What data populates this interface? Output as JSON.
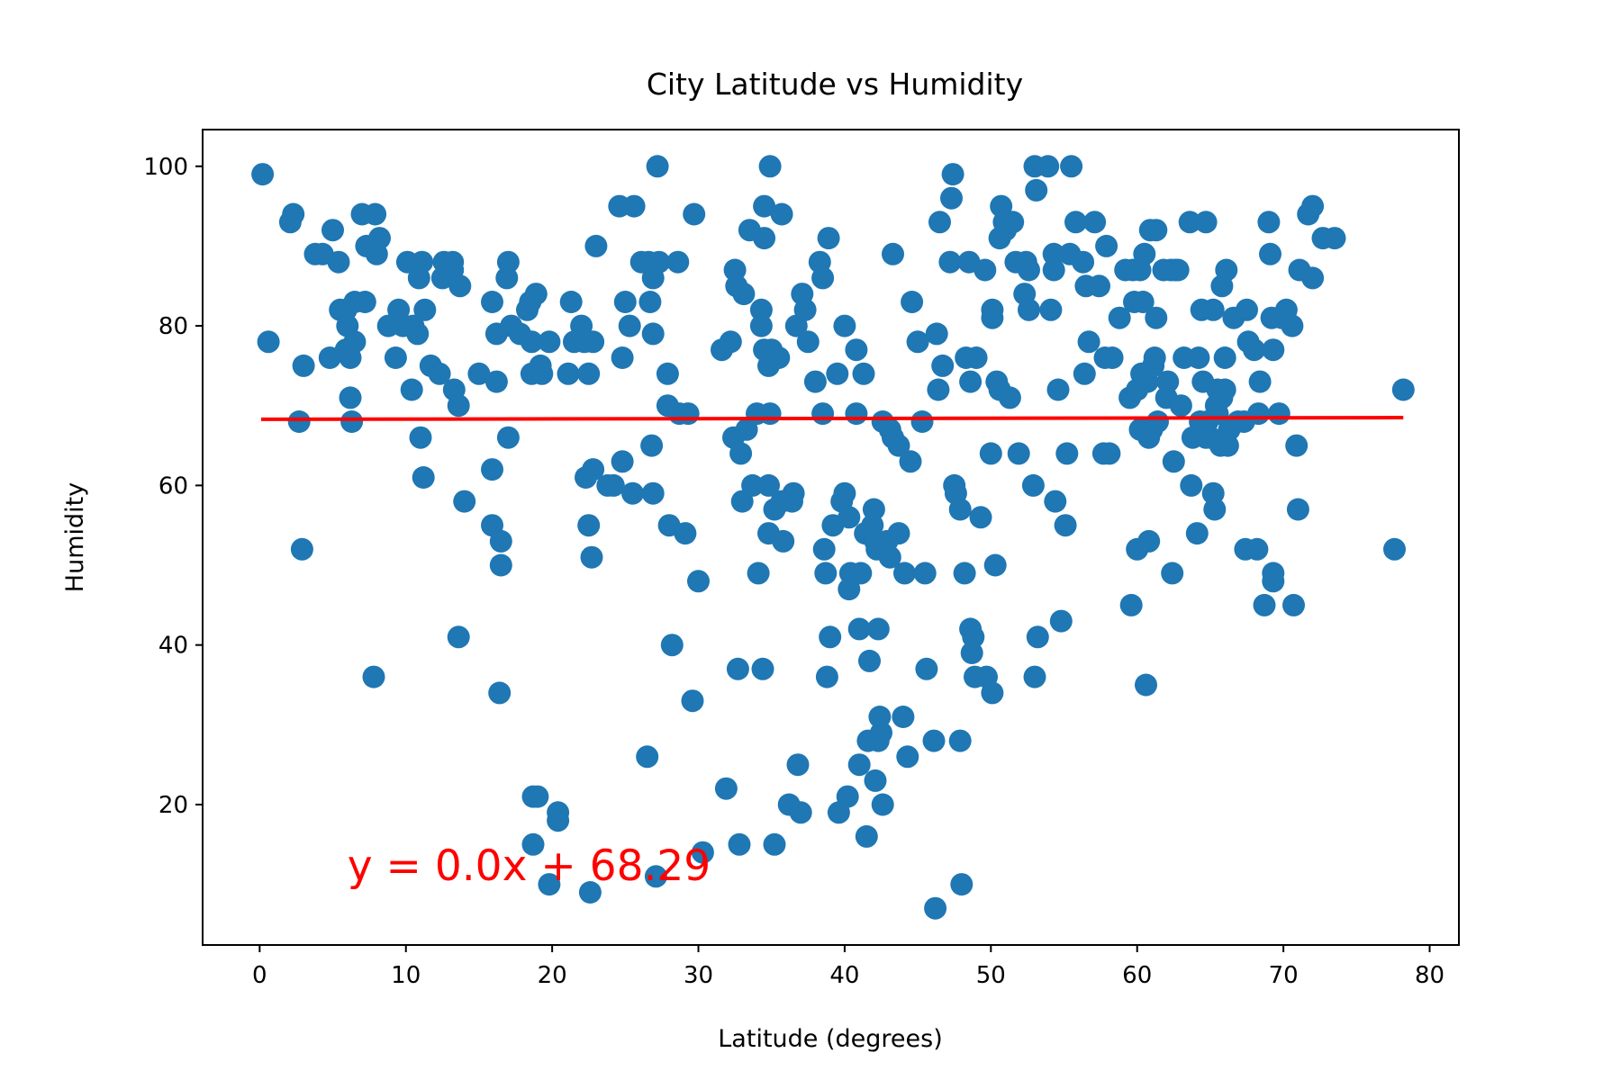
{
  "chart_data": {
    "type": "scatter",
    "title": "City Latitude vs Humidity",
    "xlabel": "Latitude (degrees)",
    "ylabel": "Humidity",
    "xlim": [
      -3.9,
      82.0
    ],
    "ylim": [
      2.4,
      104.6
    ],
    "xticks": [
      "0",
      "10",
      "20",
      "30",
      "40",
      "50",
      "60",
      "70",
      "80"
    ],
    "yticks": [
      "20",
      "40",
      "60",
      "80",
      "100"
    ],
    "grid": false,
    "colors": {
      "points": "#1f77b4",
      "regression": "#ff0000"
    },
    "regression": {
      "slope": 0.0,
      "intercept": 68.29,
      "x_start": 0.1,
      "x_end": 78.2,
      "y_start": 68.29,
      "y_end": 68.5,
      "equation_label": "y = 0.0x + 68.29",
      "label_x": 6.0,
      "label_y": 10.5
    },
    "points": [
      [
        0.2,
        99
      ],
      [
        0.6,
        78
      ],
      [
        2.1,
        93
      ],
      [
        2.3,
        94
      ],
      [
        2.7,
        68
      ],
      [
        2.9,
        52
      ],
      [
        3.0,
        75
      ],
      [
        3.8,
        89
      ],
      [
        4.3,
        89
      ],
      [
        4.8,
        76
      ],
      [
        5.0,
        92
      ],
      [
        5.4,
        88
      ],
      [
        5.5,
        82
      ],
      [
        5.9,
        82
      ],
      [
        5.9,
        77
      ],
      [
        6.0,
        80
      ],
      [
        6.2,
        76
      ],
      [
        6.2,
        71
      ],
      [
        6.3,
        68
      ],
      [
        6.5,
        78
      ],
      [
        6.5,
        83
      ],
      [
        7.0,
        94
      ],
      [
        7.2,
        83
      ],
      [
        7.3,
        90
      ],
      [
        7.8,
        36
      ],
      [
        7.9,
        94
      ],
      [
        8.0,
        89
      ],
      [
        8.2,
        91
      ],
      [
        8.8,
        80
      ],
      [
        9.3,
        76
      ],
      [
        9.5,
        82
      ],
      [
        9.8,
        80
      ],
      [
        10.1,
        88
      ],
      [
        10.4,
        72
      ],
      [
        10.5,
        80
      ],
      [
        10.8,
        79
      ],
      [
        10.9,
        86
      ],
      [
        11.0,
        66
      ],
      [
        11.1,
        88
      ],
      [
        11.2,
        61
      ],
      [
        11.3,
        82
      ],
      [
        11.7,
        75
      ],
      [
        12.3,
        74
      ],
      [
        12.5,
        86
      ],
      [
        12.6,
        88
      ],
      [
        13.2,
        87
      ],
      [
        13.2,
        88
      ],
      [
        13.3,
        72
      ],
      [
        13.6,
        70
      ],
      [
        13.6,
        41
      ],
      [
        13.7,
        85
      ],
      [
        14.0,
        58
      ],
      [
        15.0,
        74
      ],
      [
        15.9,
        55
      ],
      [
        15.9,
        62
      ],
      [
        15.9,
        83
      ],
      [
        16.2,
        79
      ],
      [
        16.2,
        73
      ],
      [
        16.4,
        34
      ],
      [
        16.5,
        53
      ],
      [
        16.5,
        50
      ],
      [
        16.9,
        86
      ],
      [
        17.0,
        66
      ],
      [
        17.0,
        88
      ],
      [
        17.2,
        80
      ],
      [
        17.8,
        79
      ],
      [
        18.3,
        82
      ],
      [
        18.5,
        83
      ],
      [
        18.6,
        78
      ],
      [
        18.6,
        74
      ],
      [
        18.7,
        21
      ],
      [
        18.7,
        15
      ],
      [
        18.9,
        84
      ],
      [
        19.0,
        21
      ],
      [
        19.2,
        75
      ],
      [
        19.3,
        74
      ],
      [
        19.8,
        10
      ],
      [
        19.8,
        78
      ],
      [
        20.4,
        19
      ],
      [
        20.4,
        18
      ],
      [
        21.1,
        74
      ],
      [
        21.3,
        83
      ],
      [
        21.5,
        78
      ],
      [
        22.0,
        80
      ],
      [
        22.2,
        78
      ],
      [
        22.3,
        61
      ],
      [
        22.5,
        55
      ],
      [
        22.5,
        74
      ],
      [
        22.6,
        9
      ],
      [
        22.7,
        51
      ],
      [
        22.8,
        62
      ],
      [
        22.8,
        78
      ],
      [
        23.0,
        90
      ],
      [
        23.8,
        60
      ],
      [
        24.2,
        60
      ],
      [
        24.6,
        95
      ],
      [
        24.8,
        63
      ],
      [
        24.8,
        76
      ],
      [
        25.0,
        83
      ],
      [
        25.3,
        80
      ],
      [
        25.5,
        59
      ],
      [
        25.6,
        95
      ],
      [
        26.1,
        88
      ],
      [
        26.5,
        26
      ],
      [
        26.6,
        88
      ],
      [
        26.7,
        83
      ],
      [
        26.8,
        65
      ],
      [
        26.9,
        86
      ],
      [
        26.9,
        79
      ],
      [
        26.9,
        59
      ],
      [
        27.1,
        11
      ],
      [
        27.2,
        100
      ],
      [
        27.3,
        88
      ],
      [
        27.9,
        74
      ],
      [
        27.9,
        70
      ],
      [
        28.0,
        55
      ],
      [
        28.2,
        40
      ],
      [
        28.6,
        88
      ],
      [
        28.7,
        69
      ],
      [
        29.1,
        54
      ],
      [
        29.3,
        69
      ],
      [
        29.6,
        33
      ],
      [
        29.7,
        94
      ],
      [
        30.0,
        48
      ],
      [
        30.3,
        14
      ],
      [
        31.6,
        77
      ],
      [
        31.9,
        22
      ],
      [
        32.2,
        78
      ],
      [
        32.4,
        66
      ],
      [
        32.5,
        87
      ],
      [
        32.6,
        85
      ],
      [
        32.7,
        37
      ],
      [
        32.8,
        15
      ],
      [
        32.9,
        64
      ],
      [
        33.1,
        84
      ],
      [
        33.0,
        58
      ],
      [
        33.3,
        67
      ],
      [
        33.5,
        92
      ],
      [
        33.7,
        60
      ],
      [
        34.0,
        69
      ],
      [
        34.1,
        49
      ],
      [
        34.3,
        82
      ],
      [
        34.3,
        80
      ],
      [
        34.4,
        37
      ],
      [
        34.5,
        77
      ],
      [
        34.5,
        91
      ],
      [
        34.5,
        95
      ],
      [
        34.8,
        60
      ],
      [
        34.8,
        54
      ],
      [
        34.8,
        75
      ],
      [
        34.9,
        69
      ],
      [
        34.9,
        100
      ],
      [
        35.0,
        77
      ],
      [
        35.2,
        57
      ],
      [
        35.2,
        15
      ],
      [
        35.5,
        76
      ],
      [
        35.7,
        94
      ],
      [
        35.7,
        58
      ],
      [
        35.8,
        53
      ],
      [
        36.2,
        20
      ],
      [
        36.4,
        58
      ],
      [
        36.5,
        59
      ],
      [
        36.7,
        80
      ],
      [
        36.8,
        25
      ],
      [
        37.0,
        19
      ],
      [
        37.1,
        84
      ],
      [
        37.3,
        82
      ],
      [
        37.5,
        78
      ],
      [
        38.0,
        73
      ],
      [
        38.3,
        88
      ],
      [
        38.5,
        69
      ],
      [
        38.5,
        86
      ],
      [
        38.6,
        52
      ],
      [
        38.7,
        49
      ],
      [
        38.8,
        36
      ],
      [
        38.9,
        91
      ],
      [
        39.0,
        41
      ],
      [
        39.2,
        55
      ],
      [
        39.5,
        74
      ],
      [
        39.6,
        19
      ],
      [
        39.8,
        58
      ],
      [
        40.0,
        59
      ],
      [
        40.0,
        80
      ],
      [
        40.2,
        21
      ],
      [
        40.3,
        56
      ],
      [
        40.3,
        47
      ],
      [
        40.4,
        49
      ],
      [
        40.8,
        69
      ],
      [
        40.8,
        77
      ],
      [
        41.0,
        25
      ],
      [
        41.0,
        42
      ],
      [
        41.1,
        49
      ],
      [
        41.3,
        74
      ],
      [
        41.4,
        54
      ],
      [
        41.5,
        16
      ],
      [
        41.6,
        28
      ],
      [
        41.7,
        38
      ],
      [
        41.9,
        55
      ],
      [
        42.0,
        57
      ],
      [
        42.1,
        23
      ],
      [
        42.1,
        53
      ],
      [
        42.2,
        52
      ],
      [
        42.3,
        42
      ],
      [
        42.3,
        28
      ],
      [
        42.4,
        31
      ],
      [
        42.5,
        29
      ],
      [
        42.6,
        20
      ],
      [
        42.6,
        68
      ],
      [
        42.9,
        53
      ],
      [
        43.1,
        51
      ],
      [
        43.1,
        67
      ],
      [
        43.3,
        89
      ],
      [
        43.3,
        66
      ],
      [
        43.7,
        54
      ],
      [
        43.7,
        65
      ],
      [
        44.0,
        31
      ],
      [
        44.1,
        49
      ],
      [
        44.3,
        26
      ],
      [
        44.5,
        63
      ],
      [
        44.6,
        83
      ],
      [
        45.0,
        78
      ],
      [
        45.3,
        68
      ],
      [
        45.5,
        49
      ],
      [
        45.6,
        37
      ],
      [
        46.1,
        28
      ],
      [
        46.2,
        7
      ],
      [
        46.3,
        79
      ],
      [
        46.4,
        72
      ],
      [
        46.5,
        93
      ],
      [
        46.7,
        75
      ],
      [
        47.2,
        88
      ],
      [
        47.3,
        96
      ],
      [
        47.4,
        99
      ],
      [
        47.5,
        60
      ],
      [
        47.6,
        59
      ],
      [
        47.9,
        57
      ],
      [
        47.9,
        28
      ],
      [
        48.0,
        10
      ],
      [
        48.2,
        49
      ],
      [
        48.3,
        76
      ],
      [
        48.5,
        88
      ],
      [
        48.6,
        73
      ],
      [
        48.6,
        42
      ],
      [
        48.7,
        39
      ],
      [
        48.8,
        41
      ],
      [
        48.9,
        36
      ],
      [
        49.0,
        76
      ],
      [
        49.3,
        56
      ],
      [
        49.6,
        87
      ],
      [
        49.7,
        36
      ],
      [
        50.0,
        64
      ],
      [
        50.1,
        34
      ],
      [
        50.1,
        82
      ],
      [
        50.1,
        81
      ],
      [
        50.3,
        50
      ],
      [
        50.4,
        73
      ],
      [
        50.6,
        72
      ],
      [
        50.6,
        91
      ],
      [
        50.7,
        95
      ],
      [
        50.9,
        93
      ],
      [
        51.0,
        92
      ],
      [
        51.3,
        71
      ],
      [
        51.5,
        93
      ],
      [
        51.7,
        88
      ],
      [
        51.9,
        64
      ],
      [
        52.3,
        84
      ],
      [
        52.4,
        88
      ],
      [
        52.6,
        87
      ],
      [
        52.6,
        82
      ],
      [
        52.9,
        60
      ],
      [
        53.0,
        36
      ],
      [
        53.0,
        100
      ],
      [
        53.1,
        97
      ],
      [
        53.2,
        41
      ],
      [
        53.9,
        100
      ],
      [
        54.1,
        82
      ],
      [
        54.3,
        89
      ],
      [
        54.3,
        87
      ],
      [
        54.4,
        58
      ],
      [
        54.6,
        72
      ],
      [
        54.8,
        43
      ],
      [
        55.1,
        55
      ],
      [
        55.2,
        64
      ],
      [
        55.4,
        89
      ],
      [
        55.5,
        100
      ],
      [
        55.8,
        93
      ],
      [
        56.3,
        88
      ],
      [
        56.4,
        74
      ],
      [
        56.5,
        85
      ],
      [
        56.7,
        78
      ],
      [
        57.1,
        93
      ],
      [
        57.4,
        85
      ],
      [
        57.7,
        64
      ],
      [
        57.8,
        76
      ],
      [
        57.9,
        90
      ],
      [
        58.1,
        64
      ],
      [
        58.3,
        76
      ],
      [
        58.8,
        81
      ],
      [
        59.2,
        87
      ],
      [
        59.5,
        71
      ],
      [
        59.6,
        45
      ],
      [
        59.7,
        87
      ],
      [
        59.8,
        83
      ],
      [
        60.0,
        52
      ],
      [
        60.0,
        72
      ],
      [
        60.2,
        67
      ],
      [
        60.2,
        87
      ],
      [
        60.3,
        74
      ],
      [
        60.4,
        83
      ],
      [
        60.5,
        89
      ],
      [
        60.6,
        35
      ],
      [
        60.7,
        73
      ],
      [
        60.8,
        53
      ],
      [
        60.8,
        66
      ],
      [
        60.9,
        92
      ],
      [
        61.0,
        67
      ],
      [
        61.1,
        75
      ],
      [
        61.2,
        76
      ],
      [
        61.3,
        81
      ],
      [
        61.3,
        92
      ],
      [
        61.4,
        68
      ],
      [
        61.8,
        87
      ],
      [
        62.0,
        71
      ],
      [
        62.1,
        73
      ],
      [
        62.3,
        87
      ],
      [
        62.4,
        49
      ],
      [
        62.5,
        63
      ],
      [
        62.6,
        87
      ],
      [
        62.8,
        87
      ],
      [
        63.0,
        70
      ],
      [
        63.2,
        76
      ],
      [
        63.6,
        93
      ],
      [
        63.7,
        60
      ],
      [
        63.8,
        66
      ],
      [
        64.1,
        54
      ],
      [
        64.2,
        76
      ],
      [
        64.3,
        68
      ],
      [
        64.4,
        82
      ],
      [
        64.5,
        73
      ],
      [
        64.7,
        93
      ],
      [
        64.7,
        66
      ],
      [
        64.8,
        68
      ],
      [
        65.0,
        66
      ],
      [
        65.2,
        82
      ],
      [
        65.2,
        59
      ],
      [
        65.3,
        57
      ],
      [
        65.4,
        70
      ],
      [
        65.5,
        72
      ],
      [
        65.5,
        69
      ],
      [
        65.7,
        65
      ],
      [
        65.8,
        71
      ],
      [
        65.8,
        85
      ],
      [
        66.0,
        72
      ],
      [
        66.0,
        76
      ],
      [
        66.1,
        87
      ],
      [
        66.2,
        65
      ],
      [
        66.3,
        67
      ],
      [
        66.6,
        81
      ],
      [
        66.9,
        68
      ],
      [
        67.3,
        68
      ],
      [
        67.4,
        52
      ],
      [
        67.5,
        82
      ],
      [
        67.6,
        78
      ],
      [
        68.0,
        77
      ],
      [
        68.2,
        52
      ],
      [
        68.3,
        69
      ],
      [
        68.4,
        73
      ],
      [
        68.7,
        45
      ],
      [
        69.0,
        93
      ],
      [
        69.1,
        89
      ],
      [
        69.2,
        81
      ],
      [
        69.3,
        49
      ],
      [
        69.3,
        48
      ],
      [
        69.3,
        77
      ],
      [
        69.7,
        69
      ],
      [
        69.9,
        81
      ],
      [
        70.2,
        82
      ],
      [
        70.6,
        80
      ],
      [
        70.7,
        45
      ],
      [
        70.9,
        65
      ],
      [
        71.0,
        57
      ],
      [
        71.1,
        87
      ],
      [
        71.7,
        94
      ],
      [
        72.0,
        95
      ],
      [
        72.0,
        86
      ],
      [
        72.7,
        91
      ],
      [
        73.5,
        91
      ],
      [
        77.6,
        52
      ],
      [
        78.2,
        72
      ]
    ]
  }
}
